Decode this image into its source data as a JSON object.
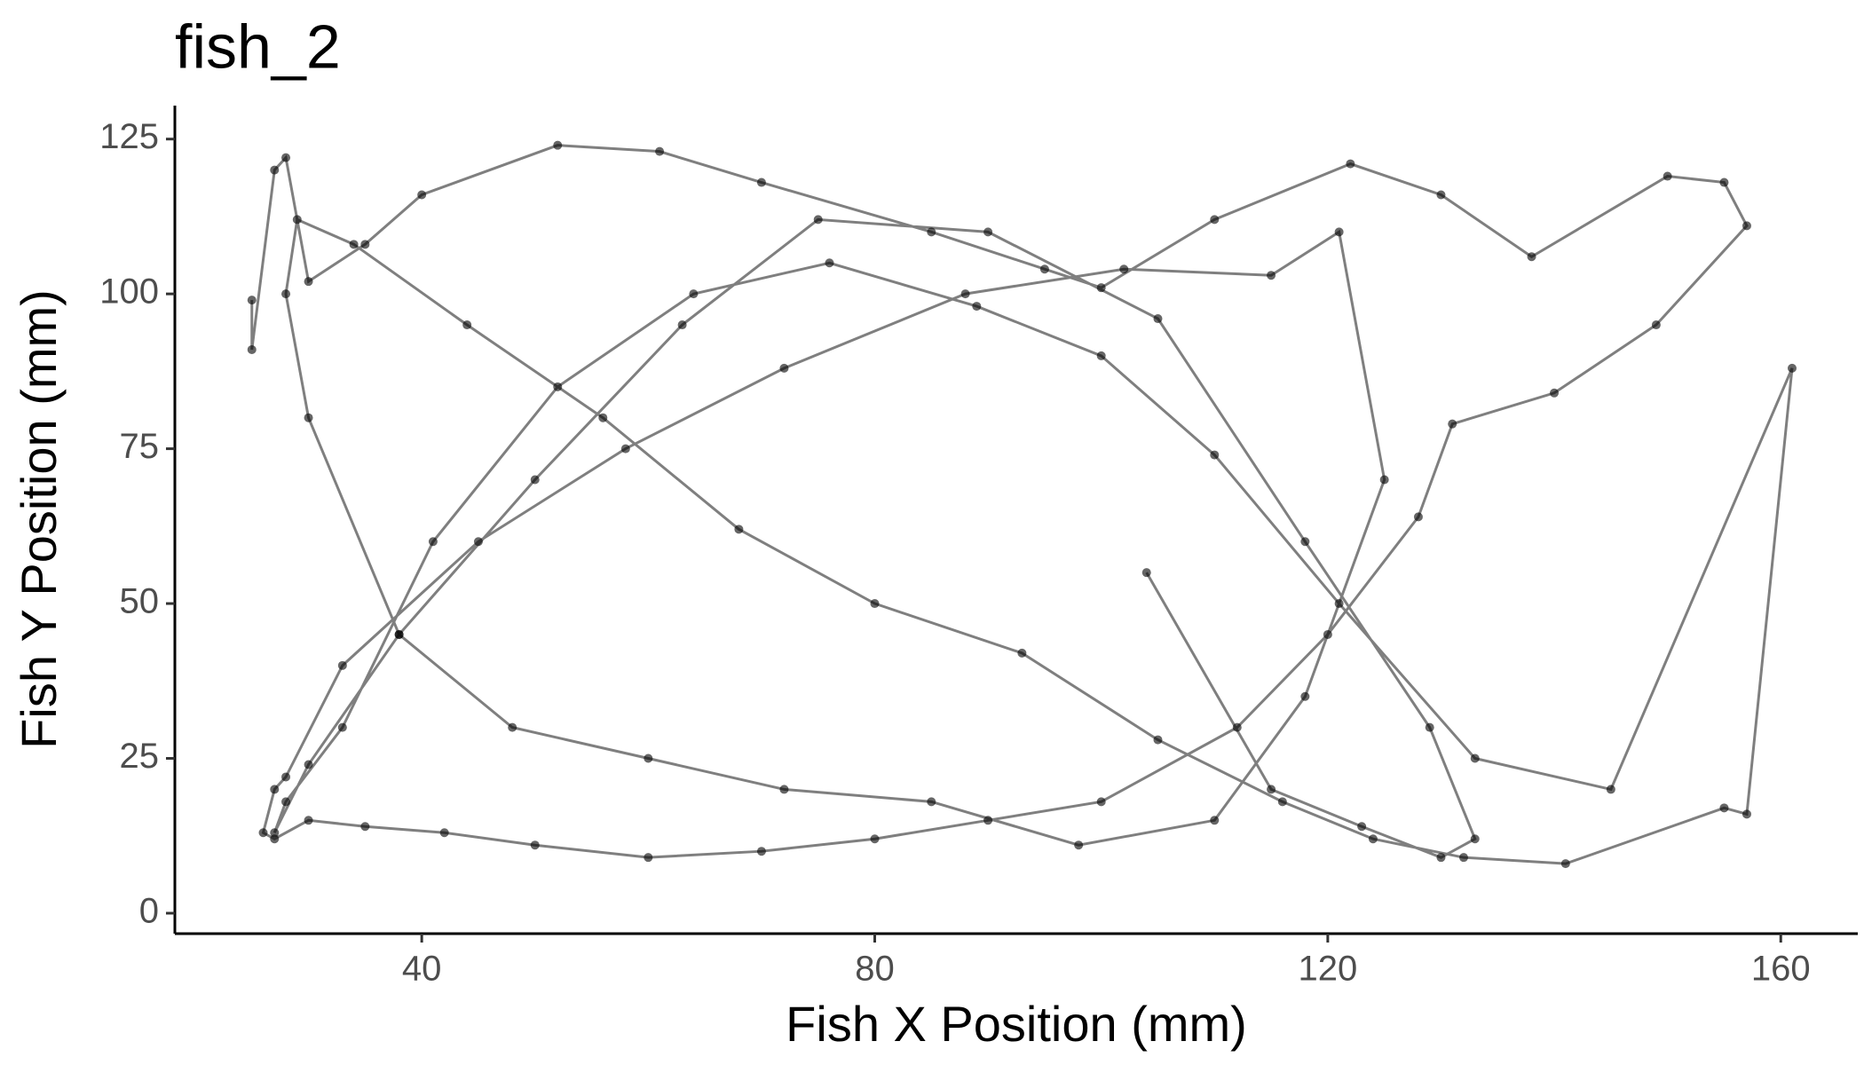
{
  "chart_data": {
    "type": "line",
    "title": "fish_2",
    "x_label": "Fish X Position (mm)",
    "y_label": "Fish Y Position (mm)",
    "color": "#000000",
    "x": [
      25,
      25,
      27,
      28,
      30,
      35,
      40,
      52,
      61,
      70,
      85,
      95,
      100,
      110,
      122,
      130,
      138,
      150,
      155,
      157,
      149,
      140,
      131,
      128,
      120,
      112,
      100,
      90,
      80,
      70,
      60,
      50,
      42,
      35,
      30,
      27,
      26,
      27,
      28,
      33,
      45,
      58,
      72,
      88,
      102,
      115,
      121,
      125,
      118,
      110,
      98,
      85,
      72,
      60,
      48,
      38,
      30,
      28,
      29,
      34,
      44,
      56,
      68,
      80,
      93,
      105,
      116,
      124,
      132,
      141,
      155,
      157,
      161,
      145,
      133,
      121,
      110,
      100,
      89,
      76,
      64,
      52,
      41,
      33,
      28,
      27,
      30,
      38,
      50,
      63,
      75,
      90,
      105,
      118,
      129,
      133,
      130,
      123,
      115,
      104
    ],
    "values": [
      99,
      91,
      120,
      122,
      102,
      108,
      116,
      124,
      123,
      118,
      110,
      104,
      101,
      112,
      121,
      116,
      106,
      119,
      118,
      111,
      95,
      84,
      79,
      64,
      45,
      30,
      18,
      15,
      12,
      10,
      9,
      11,
      13,
      14,
      15,
      12,
      13,
      20,
      22,
      40,
      60,
      75,
      88,
      100,
      104,
      103,
      110,
      70,
      35,
      15,
      11,
      18,
      20,
      25,
      30,
      45,
      80,
      100,
      112,
      108,
      95,
      80,
      62,
      50,
      42,
      28,
      18,
      12,
      9,
      8,
      17,
      16,
      88,
      20,
      25,
      50,
      74,
      90,
      98,
      105,
      100,
      85,
      60,
      30,
      18,
      13,
      24,
      45,
      70,
      95,
      112,
      110,
      96,
      60,
      30,
      12,
      9,
      14,
      20,
      55
    ],
    "xlim": [
      18.2,
      166.8
    ],
    "ylim": [
      -3.3,
      130.4
    ],
    "xticks": [
      40,
      80,
      120,
      160
    ],
    "yticks": [
      0,
      25,
      50,
      75,
      100,
      125
    ]
  }
}
